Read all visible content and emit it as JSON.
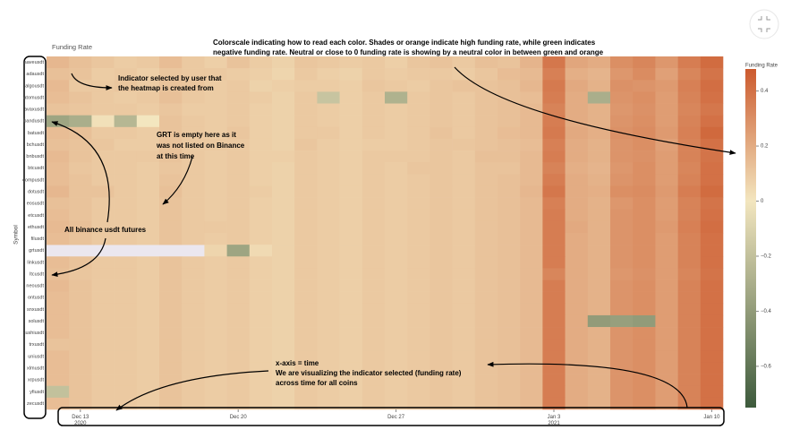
{
  "chart_data": {
    "type": "heatmap",
    "title": "Funding Rate",
    "ylabel": "Symbol",
    "colorbar_title": "Funding Rate",
    "x": [
      "2020-12-12",
      "2020-12-13",
      "2020-12-14",
      "2020-12-15",
      "2020-12-16",
      "2020-12-17",
      "2020-12-18",
      "2020-12-19",
      "2020-12-20",
      "2020-12-21",
      "2020-12-22",
      "2020-12-23",
      "2020-12-24",
      "2020-12-25",
      "2020-12-26",
      "2020-12-27",
      "2020-12-28",
      "2020-12-29",
      "2020-12-30",
      "2020-12-31",
      "2021-01-01",
      "2021-01-02",
      "2021-01-03",
      "2021-01-04",
      "2021-01-05",
      "2021-01-06",
      "2021-01-07",
      "2021-01-08",
      "2021-01-09",
      "2021-01-10"
    ],
    "xticks": [
      {
        "value": "2020-12-13",
        "label": "Dec 13\n2020"
      },
      {
        "value": "2020-12-20",
        "label": "Dec 20"
      },
      {
        "value": "2020-12-27",
        "label": "Dec 27"
      },
      {
        "value": "2021-01-03",
        "label": "Jan 3\n2021"
      },
      {
        "value": "2021-01-10",
        "label": "Jan 10"
      }
    ],
    "y": [
      "aaveusdt",
      "adausdt",
      "algousdt",
      "atomusdt",
      "avaxusdt",
      "bandusdt",
      "batusdt",
      "bchusdt",
      "bnbusdt",
      "btcusdt",
      "compusdt",
      "dotusdt",
      "eosusdt",
      "etcusdt",
      "ethusdt",
      "filusdt",
      "grtusdt",
      "linkusdt",
      "ltcusdt",
      "neousdt",
      "ontusdt",
      "snxusdt",
      "solusdt",
      "sushiusdt",
      "trxusdt",
      "uniusdt",
      "xlmusdt",
      "xrpusdt",
      "yfiusdt",
      "zecusdt"
    ],
    "z": [
      [
        0.16,
        0.13,
        0.11,
        0.09,
        0.1,
        0.14,
        0.1,
        0.08,
        0.12,
        0.09,
        0.07,
        0.11,
        0.1,
        0.09,
        0.1,
        0.08,
        0.11,
        0.12,
        0.1,
        0.13,
        0.12,
        0.17,
        0.38,
        0.22,
        0.2,
        0.3,
        0.33,
        0.27,
        0.36,
        0.42
      ],
      [
        0.13,
        0.12,
        0.09,
        0.1,
        0.08,
        0.11,
        0.1,
        0.1,
        0.09,
        0.08,
        0.06,
        0.1,
        0.08,
        0.07,
        0.1,
        0.09,
        0.1,
        0.1,
        0.09,
        0.11,
        0.14,
        0.15,
        0.35,
        0.19,
        0.17,
        0.27,
        0.31,
        0.24,
        0.33,
        0.39
      ],
      [
        0.15,
        0.1,
        0.1,
        0.11,
        0.09,
        0.12,
        0.11,
        0.09,
        0.1,
        0.07,
        0.08,
        0.09,
        0.09,
        0.08,
        0.11,
        0.1,
        0.09,
        0.11,
        0.12,
        0.12,
        0.13,
        0.16,
        0.37,
        0.21,
        0.18,
        0.29,
        0.28,
        0.26,
        0.35,
        0.41
      ],
      [
        0.14,
        0.12,
        0.1,
        0.09,
        0.1,
        0.13,
        0.1,
        0.09,
        0.1,
        0.09,
        0.07,
        0.1,
        -0.18,
        0.08,
        0.1,
        -0.28,
        0.1,
        0.11,
        0.1,
        0.12,
        0.13,
        0.14,
        0.36,
        0.2,
        -0.3,
        0.28,
        0.3,
        0.25,
        0.34,
        0.4
      ],
      [
        0.12,
        0.11,
        0.1,
        0.1,
        0.09,
        0.11,
        0.09,
        0.09,
        0.1,
        0.08,
        0.07,
        0.1,
        0.09,
        0.08,
        0.1,
        0.09,
        0.1,
        0.11,
        0.1,
        0.12,
        0.13,
        0.15,
        0.34,
        0.2,
        0.18,
        0.27,
        0.29,
        0.25,
        0.33,
        0.38
      ],
      [
        -0.35,
        -0.3,
        0.02,
        -0.25,
        0.0,
        0.12,
        0.1,
        0.09,
        0.1,
        0.08,
        0.07,
        0.1,
        0.09,
        0.08,
        0.1,
        0.09,
        0.1,
        0.11,
        0.1,
        0.12,
        0.13,
        0.15,
        0.36,
        0.2,
        0.18,
        0.28,
        0.3,
        0.25,
        0.34,
        0.4
      ],
      [
        0.14,
        0.13,
        0.1,
        0.1,
        0.09,
        0.12,
        0.1,
        0.09,
        0.11,
        0.08,
        0.07,
        0.1,
        0.1,
        0.08,
        0.1,
        0.09,
        0.1,
        0.12,
        0.1,
        0.12,
        0.14,
        0.15,
        0.37,
        0.21,
        0.19,
        0.29,
        0.31,
        0.26,
        0.35,
        0.43
      ],
      [
        0.13,
        0.12,
        0.11,
        0.09,
        0.09,
        0.12,
        0.1,
        0.1,
        0.1,
        0.08,
        0.07,
        0.11,
        0.09,
        0.08,
        0.09,
        0.09,
        0.1,
        0.11,
        0.11,
        0.12,
        0.13,
        0.14,
        0.35,
        0.2,
        0.18,
        0.28,
        0.3,
        0.24,
        0.34,
        0.4
      ],
      [
        0.15,
        0.12,
        0.1,
        0.1,
        0.1,
        0.12,
        0.1,
        0.09,
        0.1,
        0.08,
        0.08,
        0.1,
        0.09,
        0.08,
        0.1,
        0.1,
        0.1,
        0.11,
        0.1,
        0.13,
        0.13,
        0.15,
        0.36,
        0.2,
        0.18,
        0.28,
        0.29,
        0.25,
        0.34,
        0.39
      ],
      [
        0.14,
        0.11,
        0.1,
        0.1,
        0.09,
        0.11,
        0.1,
        0.09,
        0.1,
        0.08,
        0.07,
        0.1,
        0.09,
        0.08,
        0.1,
        0.09,
        0.11,
        0.11,
        0.1,
        0.12,
        0.12,
        0.15,
        0.34,
        0.19,
        0.17,
        0.27,
        0.3,
        0.25,
        0.33,
        0.4
      ],
      [
        0.14,
        0.12,
        0.1,
        0.1,
        0.09,
        0.12,
        0.1,
        0.09,
        0.1,
        0.08,
        0.07,
        0.1,
        0.09,
        0.08,
        0.1,
        0.09,
        0.1,
        0.11,
        0.1,
        0.12,
        0.13,
        0.15,
        0.36,
        0.2,
        0.18,
        0.28,
        0.3,
        0.25,
        0.34,
        0.4
      ],
      [
        0.16,
        0.12,
        0.12,
        0.1,
        0.09,
        0.13,
        0.1,
        0.09,
        0.1,
        0.09,
        0.07,
        0.1,
        0.09,
        0.08,
        0.1,
        0.09,
        0.1,
        0.11,
        0.1,
        0.12,
        0.13,
        0.16,
        0.38,
        0.2,
        0.19,
        0.3,
        0.31,
        0.26,
        0.36,
        0.42
      ],
      [
        0.13,
        0.12,
        0.1,
        0.1,
        0.09,
        0.12,
        0.1,
        0.09,
        0.1,
        0.08,
        0.07,
        0.1,
        0.09,
        0.08,
        0.1,
        0.09,
        0.1,
        0.11,
        0.1,
        0.12,
        0.13,
        0.15,
        0.35,
        0.2,
        0.18,
        0.27,
        0.3,
        0.25,
        0.34,
        0.39
      ],
      [
        0.14,
        0.12,
        0.1,
        0.1,
        0.09,
        0.12,
        0.1,
        0.09,
        0.1,
        0.08,
        0.07,
        0.1,
        0.09,
        0.08,
        0.1,
        0.09,
        0.1,
        0.11,
        0.1,
        0.12,
        0.13,
        0.15,
        0.36,
        0.2,
        0.18,
        0.28,
        0.3,
        0.25,
        0.34,
        0.4
      ],
      [
        0.15,
        0.13,
        0.1,
        0.1,
        0.09,
        0.12,
        0.1,
        0.1,
        0.1,
        0.08,
        0.07,
        0.1,
        0.09,
        0.08,
        0.1,
        0.09,
        0.1,
        0.11,
        0.1,
        0.12,
        0.13,
        0.15,
        0.36,
        0.21,
        0.18,
        0.28,
        0.3,
        0.26,
        0.35,
        0.41
      ],
      [
        0.14,
        0.12,
        0.1,
        0.1,
        0.09,
        0.12,
        0.1,
        0.09,
        0.1,
        0.08,
        0.07,
        0.1,
        0.09,
        0.08,
        0.1,
        0.09,
        0.1,
        0.11,
        0.1,
        0.12,
        0.13,
        0.15,
        0.36,
        0.2,
        0.18,
        0.28,
        0.3,
        0.25,
        0.34,
        0.4
      ],
      [
        null,
        null,
        null,
        null,
        null,
        null,
        null,
        0.06,
        -0.35,
        0.04,
        0.07,
        0.1,
        0.09,
        0.08,
        0.1,
        0.09,
        0.1,
        0.11,
        0.1,
        0.12,
        0.13,
        0.15,
        0.36,
        0.2,
        0.18,
        0.28,
        0.3,
        0.25,
        0.34,
        0.4
      ],
      [
        0.14,
        0.12,
        0.1,
        0.1,
        0.09,
        0.12,
        0.1,
        0.09,
        0.1,
        0.08,
        0.07,
        0.1,
        0.09,
        0.08,
        0.1,
        0.09,
        0.1,
        0.11,
        0.1,
        0.12,
        0.13,
        0.15,
        0.36,
        0.2,
        0.18,
        0.28,
        0.3,
        0.25,
        0.34,
        0.4
      ],
      [
        0.13,
        0.11,
        0.1,
        0.1,
        0.09,
        0.12,
        0.1,
        0.09,
        0.1,
        0.08,
        0.07,
        0.1,
        0.09,
        0.08,
        0.1,
        0.09,
        0.1,
        0.11,
        0.1,
        0.12,
        0.13,
        0.15,
        0.33,
        0.2,
        0.18,
        0.27,
        0.29,
        0.25,
        0.33,
        0.39
      ],
      [
        0.15,
        0.12,
        0.1,
        0.1,
        0.09,
        0.12,
        0.1,
        0.09,
        0.1,
        0.08,
        0.07,
        0.1,
        0.09,
        0.08,
        0.1,
        0.09,
        0.1,
        0.11,
        0.1,
        0.12,
        0.13,
        0.15,
        0.36,
        0.2,
        0.18,
        0.28,
        0.3,
        0.25,
        0.34,
        0.4
      ],
      [
        0.14,
        0.12,
        0.1,
        0.1,
        0.09,
        0.12,
        0.1,
        0.09,
        0.1,
        0.08,
        0.07,
        0.1,
        0.09,
        0.08,
        0.1,
        0.09,
        0.1,
        0.11,
        0.1,
        0.12,
        0.13,
        0.15,
        0.36,
        0.2,
        0.18,
        0.28,
        0.3,
        0.25,
        0.34,
        0.4
      ],
      [
        0.14,
        0.12,
        0.1,
        0.1,
        0.09,
        0.12,
        0.1,
        0.09,
        0.1,
        0.08,
        0.07,
        0.1,
        0.09,
        0.08,
        0.1,
        0.09,
        0.1,
        0.11,
        0.1,
        0.12,
        0.13,
        0.15,
        0.36,
        0.2,
        0.18,
        0.28,
        0.3,
        0.25,
        0.34,
        0.4
      ],
      [
        0.14,
        0.12,
        0.1,
        0.1,
        0.09,
        0.12,
        0.1,
        0.09,
        0.1,
        0.08,
        0.07,
        0.1,
        0.09,
        0.08,
        0.1,
        0.09,
        0.1,
        0.11,
        0.1,
        0.12,
        0.13,
        0.15,
        0.36,
        0.2,
        -0.4,
        -0.38,
        -0.4,
        0.25,
        0.34,
        0.4
      ],
      [
        0.14,
        0.12,
        0.1,
        0.1,
        0.09,
        0.12,
        0.1,
        0.09,
        0.1,
        0.08,
        0.07,
        0.1,
        0.09,
        0.08,
        0.1,
        0.09,
        0.1,
        0.11,
        0.1,
        0.12,
        0.13,
        0.15,
        0.36,
        0.2,
        0.18,
        0.28,
        0.3,
        0.25,
        0.34,
        0.4
      ],
      [
        0.12,
        0.12,
        0.1,
        0.1,
        0.09,
        0.12,
        0.1,
        0.09,
        0.1,
        0.08,
        0.07,
        0.1,
        0.09,
        0.08,
        0.1,
        0.09,
        0.1,
        0.11,
        0.1,
        0.12,
        0.13,
        0.15,
        0.36,
        0.2,
        0.18,
        0.28,
        0.3,
        0.25,
        0.34,
        0.4
      ],
      [
        0.14,
        0.12,
        0.1,
        0.1,
        0.09,
        0.12,
        0.1,
        0.09,
        0.1,
        0.08,
        0.07,
        0.1,
        0.09,
        0.08,
        0.1,
        0.09,
        0.1,
        0.11,
        0.1,
        0.12,
        0.13,
        0.15,
        0.36,
        0.2,
        0.18,
        0.28,
        0.3,
        0.25,
        0.34,
        0.4
      ],
      [
        0.14,
        0.12,
        0.1,
        0.1,
        0.09,
        0.12,
        0.1,
        0.09,
        0.1,
        0.08,
        0.07,
        0.1,
        0.09,
        0.08,
        0.1,
        0.09,
        0.1,
        0.11,
        0.1,
        0.12,
        0.13,
        0.15,
        0.36,
        0.2,
        0.18,
        0.28,
        0.3,
        0.25,
        0.34,
        0.4
      ],
      [
        0.14,
        0.12,
        0.1,
        0.1,
        0.09,
        0.12,
        0.1,
        0.09,
        0.1,
        0.08,
        0.07,
        0.1,
        0.09,
        0.08,
        0.1,
        0.09,
        0.1,
        0.11,
        0.1,
        0.12,
        0.13,
        0.15,
        0.36,
        0.2,
        0.18,
        0.28,
        0.3,
        0.25,
        0.34,
        0.4
      ],
      [
        -0.2,
        0.12,
        0.1,
        0.1,
        0.09,
        0.12,
        0.1,
        0.09,
        0.1,
        0.08,
        0.07,
        0.1,
        0.09,
        0.08,
        0.1,
        0.09,
        0.1,
        0.11,
        0.1,
        0.12,
        0.13,
        0.15,
        0.36,
        0.2,
        0.18,
        0.28,
        0.3,
        0.25,
        0.34,
        0.4
      ],
      [
        0.14,
        0.12,
        0.1,
        0.1,
        0.09,
        0.12,
        0.1,
        0.09,
        0.1,
        0.08,
        0.07,
        0.1,
        0.09,
        0.08,
        0.1,
        0.09,
        0.1,
        0.11,
        0.1,
        0.12,
        0.13,
        0.15,
        0.36,
        0.2,
        0.18,
        0.28,
        0.3,
        0.25,
        0.34,
        0.4
      ]
    ],
    "zlim": [
      -0.75,
      0.48
    ],
    "zticks": [
      0.4,
      0.2,
      0,
      {
        "value": -0.2,
        "label": "−0.2"
      },
      {
        "value": -0.4,
        "label": "−0.4"
      },
      {
        "value": -0.6,
        "label": "−0.6"
      }
    ],
    "colorscale": [
      "#3d5a3c",
      "#f3e6bf",
      "#cc5a2e"
    ],
    "annotations": [
      {
        "lines": [
          "Colorscale indicating how to read each color. Shades or orange indicate high funding rate, while green indicates",
          "negative funding rate. Neutral or close to 0 funding rate is showing by a neutral color in between green and orange"
        ]
      },
      {
        "lines": [
          "Indicator selected by user that",
          "the heatmap is created from"
        ]
      },
      {
        "lines": [
          "GRT is empty here as it",
          "was not listed on Binance",
          "at this time"
        ]
      },
      {
        "lines": [
          "All binance usdt futures"
        ]
      },
      {
        "lines": [
          "x-axis = time",
          "We are visualizing the indicator selected (funding rate)",
          "across time for all coins"
        ]
      }
    ]
  }
}
